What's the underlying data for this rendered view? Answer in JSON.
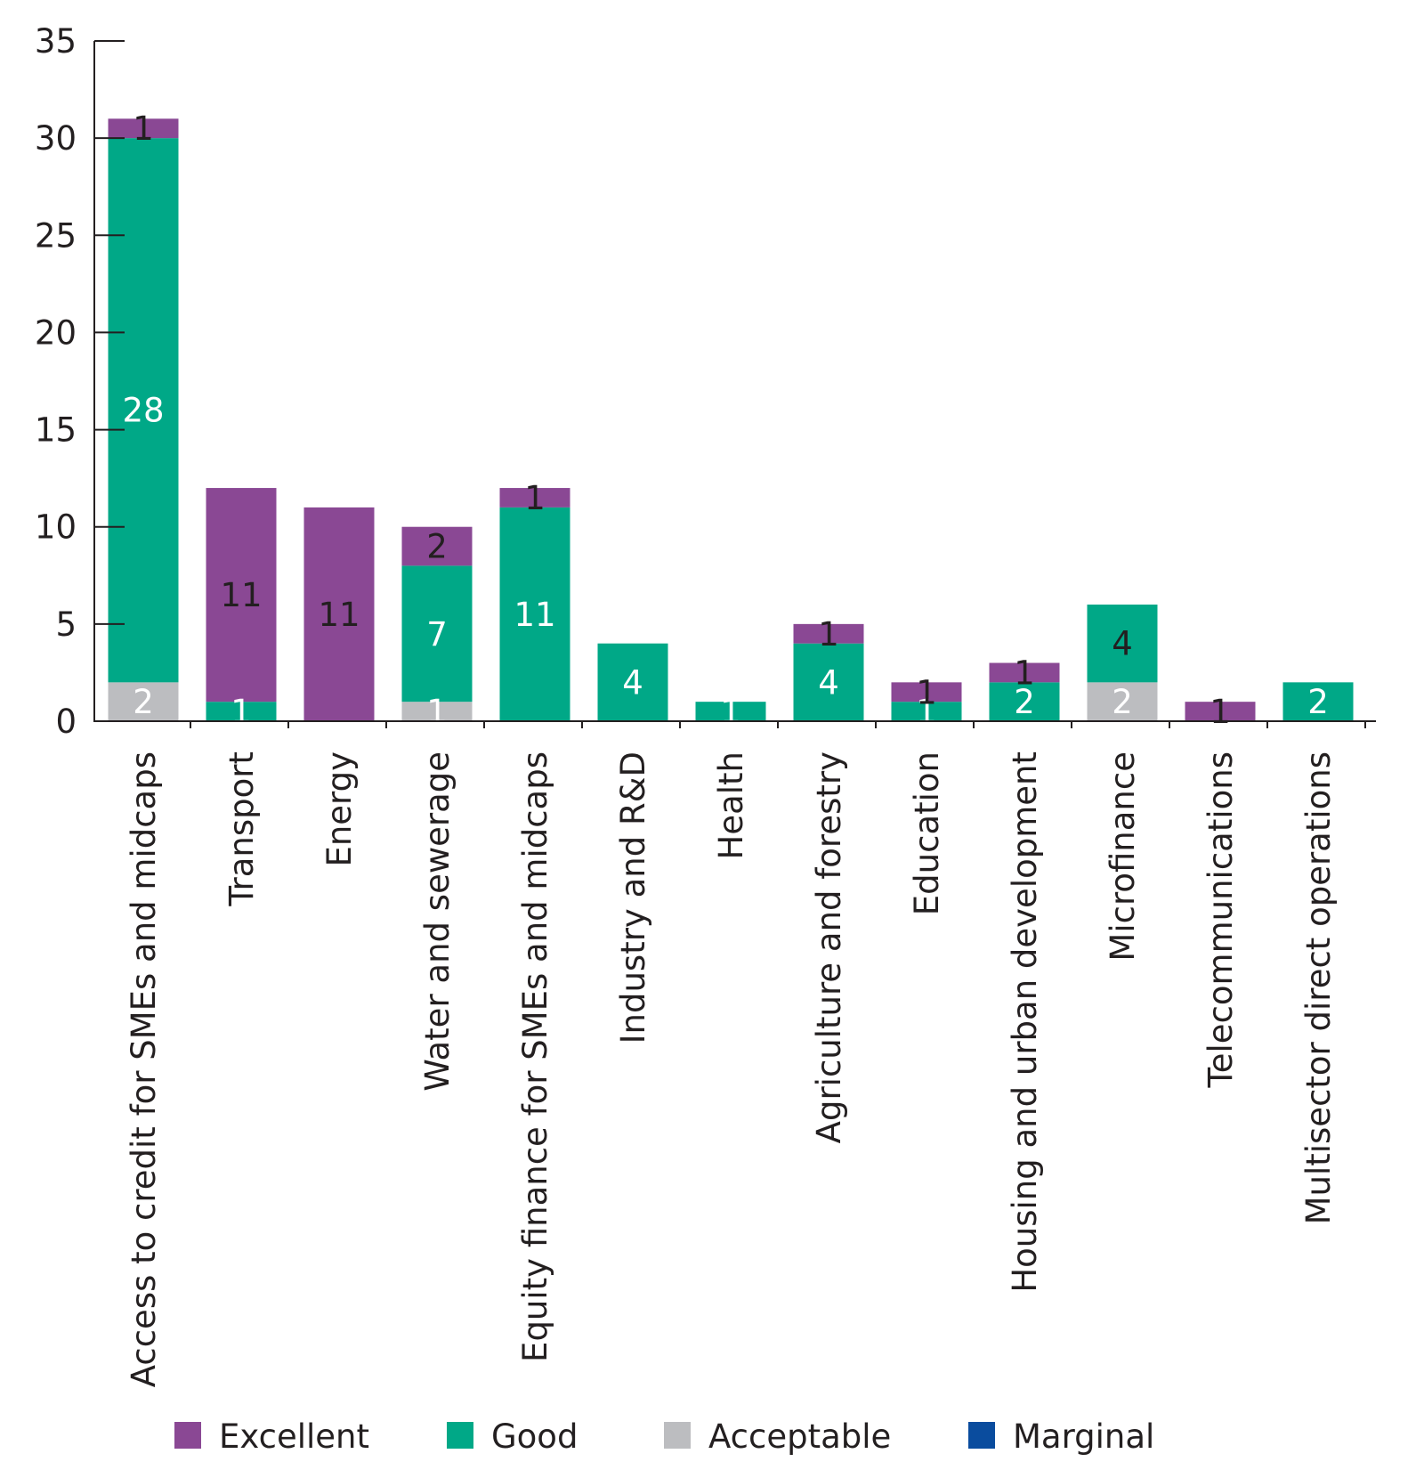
{
  "chart_data": {
    "type": "bar",
    "stacked": true,
    "categories": [
      "Access to credit for SMEs and midcaps",
      "Transport",
      "Energy",
      "Water and sewerage",
      "Equity finance for SMEs and midcaps",
      "Industry and R&D",
      "Health",
      "Agriculture and forestry",
      "Education",
      "Housing and urban development",
      "Microfinance",
      "Telecommunications",
      "Multisector direct operations"
    ],
    "series": [
      {
        "name": "Acceptable",
        "color": "#bcbdc0",
        "values": [
          2,
          0,
          0,
          1,
          0,
          0,
          0,
          0,
          0,
          0,
          2,
          0,
          0
        ]
      },
      {
        "name": "Good",
        "color": "#00a887",
        "values": [
          28,
          1,
          0,
          7,
          11,
          4,
          1,
          4,
          1,
          2,
          4,
          0,
          2
        ]
      },
      {
        "name": "Excellent",
        "color": "#8a4894",
        "values": [
          1,
          11,
          11,
          2,
          1,
          0,
          0,
          1,
          1,
          1,
          0,
          1,
          0
        ]
      },
      {
        "name": "Marginal",
        "color": "#0a4c9e",
        "values": [
          0,
          0,
          0,
          0,
          0,
          0,
          0,
          0,
          0,
          0,
          0,
          0,
          0
        ]
      }
    ],
    "label_colors": {
      "Acceptable": "#ffffff",
      "Good": [
        "#ffffff",
        "#ffffff",
        "#ffffff",
        "#ffffff",
        "#ffffff",
        "#ffffff",
        "#ffffff",
        "#ffffff",
        "#ffffff",
        "#ffffff",
        "#231f20",
        "#ffffff",
        "#ffffff"
      ],
      "Excellent": "#231f20"
    },
    "legend": {
      "position": "bottom",
      "order": [
        "Excellent",
        "Good",
        "Acceptable",
        "Marginal"
      ]
    },
    "yticks": [
      0,
      5,
      10,
      15,
      20,
      25,
      30,
      35
    ],
    "ylim": [
      0,
      35
    ],
    "grid": false,
    "title": "",
    "xlabel": "",
    "ylabel": ""
  }
}
